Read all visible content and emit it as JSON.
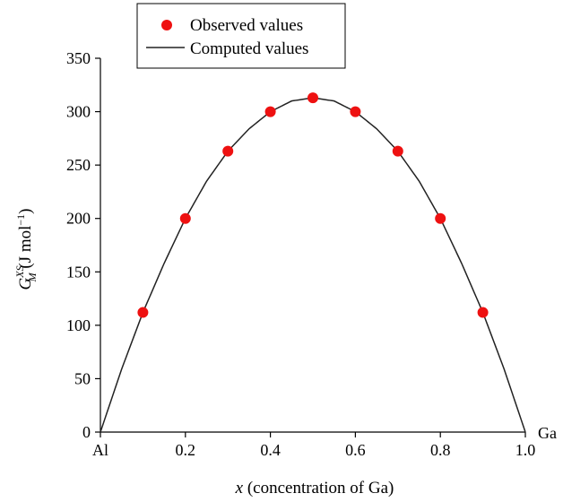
{
  "chart_data": {
    "type": "scatter",
    "title": "",
    "xlabel": {
      "var": "x",
      "rest": " (concentration of Ga)"
    },
    "ylabel": {
      "main": "G",
      "sup": "XS",
      "sub": "M",
      "unit_open": " (J mol",
      "unit_exp": "−1",
      "unit_close": ")"
    },
    "xlim": [
      0,
      1
    ],
    "ylim": [
      0,
      350
    ],
    "x_ticks": [
      {
        "value": 0,
        "label": "Al"
      },
      {
        "value": 0.2,
        "label": "0.2"
      },
      {
        "value": 0.4,
        "label": "0.4"
      },
      {
        "value": 0.6,
        "label": "0.6"
      },
      {
        "value": 0.8,
        "label": "0.8"
      },
      {
        "value": 1.0,
        "label": "1.0"
      }
    ],
    "x_end_label": "Ga",
    "y_ticks": [
      0,
      50,
      100,
      150,
      200,
      250,
      300,
      350
    ],
    "grid": false,
    "legend_position": "top-left",
    "series": [
      {
        "name": "Observed values",
        "kind": "points",
        "color": "#ee1111",
        "x": [
          0.1,
          0.2,
          0.3,
          0.4,
          0.5,
          0.6,
          0.7,
          0.8,
          0.9
        ],
        "y": [
          112,
          200,
          263,
          300,
          313,
          300,
          263,
          200,
          112
        ]
      },
      {
        "name": "Computed values",
        "kind": "curve",
        "color": "#222222",
        "x": [
          0,
          0.05,
          0.1,
          0.15,
          0.2,
          0.25,
          0.3,
          0.35,
          0.4,
          0.45,
          0.5,
          0.55,
          0.6,
          0.65,
          0.7,
          0.75,
          0.8,
          0.85,
          0.9,
          0.95,
          1.0
        ],
        "y": [
          0,
          59,
          112,
          158,
          200,
          235,
          263,
          284,
          300,
          310,
          313,
          310,
          300,
          284,
          263,
          235,
          200,
          158,
          112,
          59,
          0
        ]
      }
    ]
  }
}
